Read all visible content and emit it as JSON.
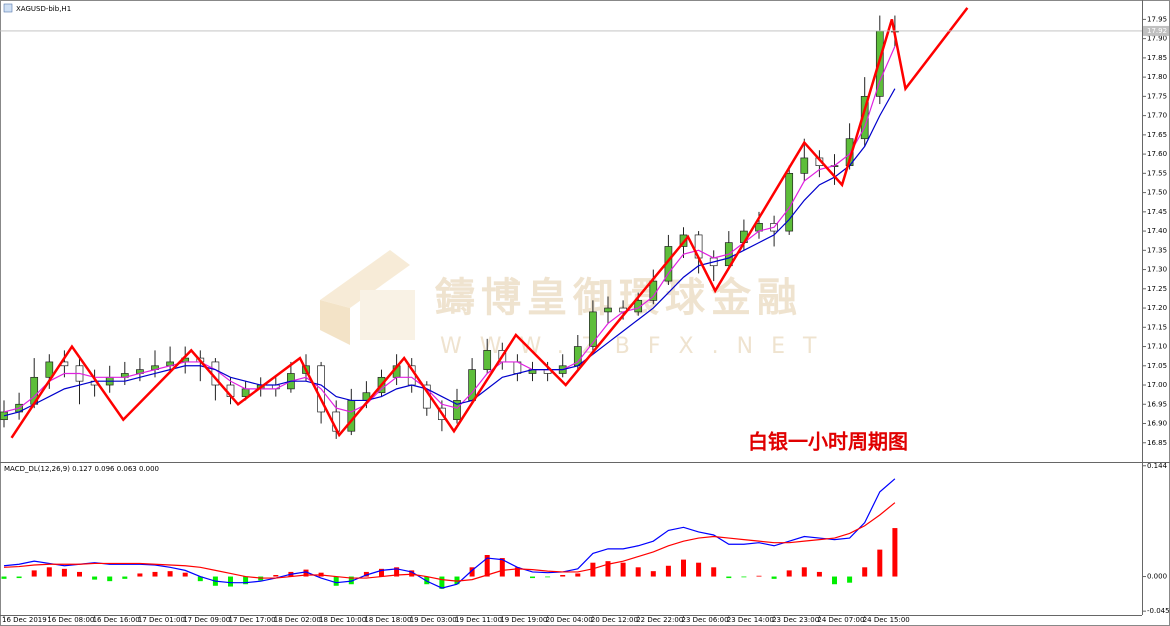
{
  "symbol": "XAGUSD-bib,H1",
  "watermark": "鑄博皇御環球金融",
  "watermark_url": "WWW.ZBFX.NET",
  "chart_data": [
    {
      "type": "candlestick",
      "title": "白银一小时周期图",
      "up_color": "#5dbe3a",
      "down_color": "#ffffff",
      "current_price": 17.92,
      "categories": [
        "16 Dec 2019",
        null,
        null,
        "16 Dec 08:00",
        null,
        null,
        "16 Dec 16:00",
        null,
        null,
        "17 Dec 01:00",
        null,
        null,
        "17 Dec 09:00",
        null,
        null,
        "17 Dec 17:00",
        null,
        null,
        "18 Dec 02:00",
        null,
        null,
        "18 Dec 10:00",
        null,
        null,
        "18 Dec 18:00",
        null,
        null,
        "19 Dec 03:00",
        null,
        null,
        "19 Dec 11:00",
        null,
        null,
        "19 Dec 19:00",
        null,
        null,
        "20 Dec 04:00",
        null,
        null,
        "20 Dec 12:00",
        null,
        null,
        "22 Dec 22:00",
        null,
        null,
        "23 Dec 06:00",
        null,
        null,
        "23 Dec 14:00",
        null,
        null,
        "23 Dec 23:00",
        null,
        null,
        "24 Dec 07:00",
        null,
        null,
        "24 Dec 15:00",
        null,
        null
      ],
      "ohlc": [
        [
          16.91,
          16.96,
          16.89,
          16.93
        ],
        [
          16.93,
          16.98,
          16.91,
          16.95
        ],
        [
          16.95,
          17.07,
          16.94,
          17.02
        ],
        [
          17.02,
          17.08,
          16.99,
          17.06
        ],
        [
          17.06,
          17.09,
          17.02,
          17.05
        ],
        [
          17.05,
          17.07,
          16.95,
          17.01
        ],
        [
          17.01,
          17.04,
          16.97,
          17.0
        ],
        [
          17.0,
          17.05,
          16.98,
          17.02
        ],
        [
          17.02,
          17.06,
          17.0,
          17.03
        ],
        [
          17.03,
          17.07,
          17.01,
          17.04
        ],
        [
          17.04,
          17.09,
          17.02,
          17.05
        ],
        [
          17.05,
          17.1,
          17.03,
          17.06
        ],
        [
          17.06,
          17.1,
          17.03,
          17.07
        ],
        [
          17.07,
          17.09,
          17.01,
          17.06
        ],
        [
          17.06,
          17.07,
          16.96,
          17.0
        ],
        [
          17.0,
          17.02,
          16.95,
          16.97
        ],
        [
          16.97,
          17.01,
          16.96,
          16.99
        ],
        [
          16.99,
          17.02,
          16.97,
          17.0
        ],
        [
          17.0,
          17.02,
          16.97,
          16.99
        ],
        [
          16.99,
          17.06,
          16.98,
          17.03
        ],
        [
          17.03,
          17.08,
          17.01,
          17.05
        ],
        [
          17.05,
          17.06,
          16.9,
          16.93
        ],
        [
          16.93,
          16.96,
          16.86,
          16.88
        ],
        [
          16.88,
          16.99,
          16.87,
          16.96
        ],
        [
          16.96,
          17.01,
          16.94,
          16.98
        ],
        [
          16.98,
          17.04,
          16.97,
          17.02
        ],
        [
          17.02,
          17.08,
          17.0,
          17.05
        ],
        [
          17.05,
          17.07,
          16.98,
          17.0
        ],
        [
          17.0,
          17.01,
          16.92,
          16.94
        ],
        [
          16.94,
          16.96,
          16.88,
          16.91
        ],
        [
          16.91,
          16.99,
          16.9,
          16.96
        ],
        [
          16.96,
          17.07,
          16.95,
          17.04
        ],
        [
          17.04,
          17.12,
          17.03,
          17.09
        ],
        [
          17.09,
          17.11,
          17.04,
          17.06
        ],
        [
          17.06,
          17.08,
          17.01,
          17.03
        ],
        [
          17.03,
          17.06,
          17.01,
          17.04
        ],
        [
          17.04,
          17.06,
          17.01,
          17.03
        ],
        [
          17.03,
          17.08,
          17.02,
          17.05
        ],
        [
          17.05,
          17.13,
          17.04,
          17.1
        ],
        [
          17.1,
          17.22,
          17.08,
          17.19
        ],
        [
          17.19,
          17.23,
          17.16,
          17.2
        ],
        [
          17.2,
          17.22,
          17.17,
          17.19
        ],
        [
          17.19,
          17.24,
          17.18,
          17.22
        ],
        [
          17.22,
          17.3,
          17.21,
          17.27
        ],
        [
          17.27,
          17.39,
          17.26,
          17.36
        ],
        [
          17.36,
          17.41,
          17.33,
          17.39
        ],
        [
          17.39,
          17.4,
          17.29,
          17.33
        ],
        [
          17.33,
          17.35,
          17.27,
          17.31
        ],
        [
          17.31,
          17.4,
          17.3,
          17.37
        ],
        [
          17.37,
          17.43,
          17.35,
          17.4
        ],
        [
          17.4,
          17.45,
          17.38,
          17.42
        ],
        [
          17.42,
          17.44,
          17.36,
          17.4
        ],
        [
          17.4,
          17.57,
          17.39,
          17.55
        ],
        [
          17.55,
          17.64,
          17.53,
          17.59
        ],
        [
          17.59,
          17.61,
          17.54,
          17.57
        ],
        [
          17.57,
          17.6,
          17.52,
          17.57
        ],
        [
          17.57,
          17.68,
          17.56,
          17.64
        ],
        [
          17.64,
          17.8,
          17.62,
          17.75
        ],
        [
          17.75,
          17.96,
          17.73,
          17.92
        ],
        [
          17.92,
          17.96,
          17.88,
          17.92
        ]
      ],
      "series": [
        {
          "color": "#e020e0",
          "values": [
            16.93,
            16.94,
            16.97,
            17.01,
            17.03,
            17.03,
            17.02,
            17.02,
            17.02,
            17.03,
            17.04,
            17.05,
            17.06,
            17.06,
            17.04,
            17.01,
            16.99,
            16.99,
            16.99,
            17.01,
            17.02,
            16.99,
            16.94,
            16.93,
            16.95,
            16.99,
            17.02,
            17.02,
            16.99,
            16.95,
            16.94,
            16.98,
            17.03,
            17.06,
            17.06,
            17.04,
            17.04,
            17.04,
            17.06,
            17.11,
            17.16,
            17.19,
            17.2,
            17.23,
            17.29,
            17.34,
            17.35,
            17.33,
            17.34,
            17.37,
            17.4,
            17.41,
            17.46,
            17.53,
            17.56,
            17.57,
            17.6,
            17.67,
            17.79,
            17.88
          ]
        },
        {
          "color": "#0000cc",
          "values": [
            16.92,
            16.93,
            16.95,
            16.97,
            16.99,
            17.0,
            17.01,
            17.01,
            17.01,
            17.02,
            17.03,
            17.04,
            17.05,
            17.05,
            17.04,
            17.02,
            17.01,
            17.0,
            17.0,
            17.01,
            17.01,
            17.0,
            16.97,
            16.96,
            16.96,
            16.97,
            16.99,
            17.0,
            16.99,
            16.97,
            16.95,
            16.96,
            16.99,
            17.02,
            17.03,
            17.04,
            17.04,
            17.04,
            17.05,
            17.08,
            17.11,
            17.14,
            17.17,
            17.2,
            17.24,
            17.28,
            17.31,
            17.32,
            17.33,
            17.35,
            17.37,
            17.39,
            17.43,
            17.48,
            17.52,
            17.54,
            17.57,
            17.62,
            17.7,
            17.77
          ]
        }
      ],
      "zigzag": {
        "color": "#ff0000",
        "x": [
          0.5,
          4.5,
          7.9,
          12.4,
          15.5,
          19.6,
          22.2,
          26.5,
          29.8,
          33.9,
          37.2,
          45.3,
          47.1,
          53.0,
          55.5,
          58.8,
          59.7,
          63.8
        ],
        "values": [
          16.863,
          17.1,
          16.91,
          17.09,
          16.95,
          17.07,
          16.87,
          17.07,
          16.88,
          17.13,
          17.0,
          17.385,
          17.245,
          17.63,
          17.52,
          17.95,
          17.77,
          17.98
        ]
      },
      "ylim": [
        16.8,
        17.99
      ],
      "yticks": [
        16.85,
        {
          "value": 16.9,
          "label": "16.90"
        },
        16.95,
        {
          "value": 17.0,
          "label": "17.00"
        },
        17.05,
        {
          "value": 17.1,
          "label": "17.10"
        },
        17.15,
        {
          "value": 17.2,
          "label": "17.20"
        },
        17.25,
        {
          "value": 17.3,
          "label": "17.30"
        },
        17.35,
        {
          "value": 17.4,
          "label": "17.40"
        },
        17.45,
        {
          "value": 17.5,
          "label": "17.50"
        },
        17.55,
        {
          "value": 17.6,
          "label": "17.60"
        },
        17.65,
        {
          "value": 17.7,
          "label": "17.70"
        },
        17.75,
        {
          "value": 17.8,
          "label": "17.80"
        },
        17.85,
        {
          "value": 17.9,
          "label": "17.90"
        },
        17.95
      ]
    },
    {
      "type": "macd",
      "title": "MACD_DL(12,26,9) 0.127 0.096 0.063 0.000",
      "up_color": "#ff0000",
      "down_color": "#00ee00",
      "values": [
        -0.003,
        -0.002,
        0.008,
        0.012,
        0.01,
        0.006,
        -0.004,
        -0.006,
        -0.003,
        0.004,
        0.006,
        0.007,
        0.005,
        -0.006,
        -0.012,
        -0.013,
        -0.01,
        -0.005,
        0.002,
        0.006,
        0.009,
        0.005,
        -0.012,
        -0.01,
        0.006,
        0.01,
        0.012,
        0.008,
        -0.01,
        -0.016,
        -0.01,
        0.012,
        0.028,
        0.024,
        0.012,
        -0.002,
        -0.001,
        0.002,
        0.004,
        0.018,
        0.02,
        0.018,
        0.012,
        0.007,
        0.014,
        0.022,
        0.018,
        0.012,
        -0.002,
        -0.001,
        0.001,
        -0.003,
        0.008,
        0.012,
        0.006,
        -0.01,
        -0.008,
        0.012,
        0.035,
        0.063
      ],
      "series": [
        {
          "color": "#0000ff",
          "values": [
            0.014,
            0.016,
            0.02,
            0.017,
            0.014,
            0.016,
            0.018,
            0.016,
            0.016,
            0.016,
            0.015,
            0.012,
            0.008,
            0.0,
            -0.006,
            -0.008,
            -0.008,
            -0.006,
            -0.002,
            0.003,
            0.006,
            -0.002,
            -0.008,
            -0.006,
            0.002,
            0.008,
            0.01,
            0.006,
            -0.006,
            -0.015,
            -0.01,
            0.008,
            0.024,
            0.022,
            0.012,
            0.006,
            0.005,
            0.006,
            0.01,
            0.03,
            0.036,
            0.036,
            0.04,
            0.046,
            0.06,
            0.064,
            0.058,
            0.054,
            0.042,
            0.042,
            0.044,
            0.04,
            0.046,
            0.052,
            0.05,
            0.048,
            0.05,
            0.07,
            0.11,
            0.127
          ]
        },
        {
          "color": "#ff0000",
          "values": [
            0.012,
            0.013,
            0.015,
            0.016,
            0.016,
            0.016,
            0.017,
            0.017,
            0.017,
            0.017,
            0.016,
            0.015,
            0.014,
            0.012,
            0.008,
            0.004,
            0.0,
            -0.002,
            -0.002,
            0.0,
            0.002,
            0.002,
            0.0,
            -0.002,
            -0.002,
            0.0,
            0.002,
            0.003,
            0.0,
            -0.004,
            -0.006,
            -0.004,
            0.002,
            0.008,
            0.01,
            0.009,
            0.007,
            0.006,
            0.006,
            0.01,
            0.016,
            0.02,
            0.026,
            0.032,
            0.04,
            0.046,
            0.05,
            0.052,
            0.05,
            0.048,
            0.046,
            0.044,
            0.044,
            0.046,
            0.048,
            0.05,
            0.056,
            0.066,
            0.08,
            0.096
          ]
        }
      ],
      "ylim": [
        -0.05,
        0.145
      ],
      "yticks": [
        0.144,
        {
          "value": 0,
          "label": "0.000"
        },
        -0.045
      ]
    }
  ]
}
